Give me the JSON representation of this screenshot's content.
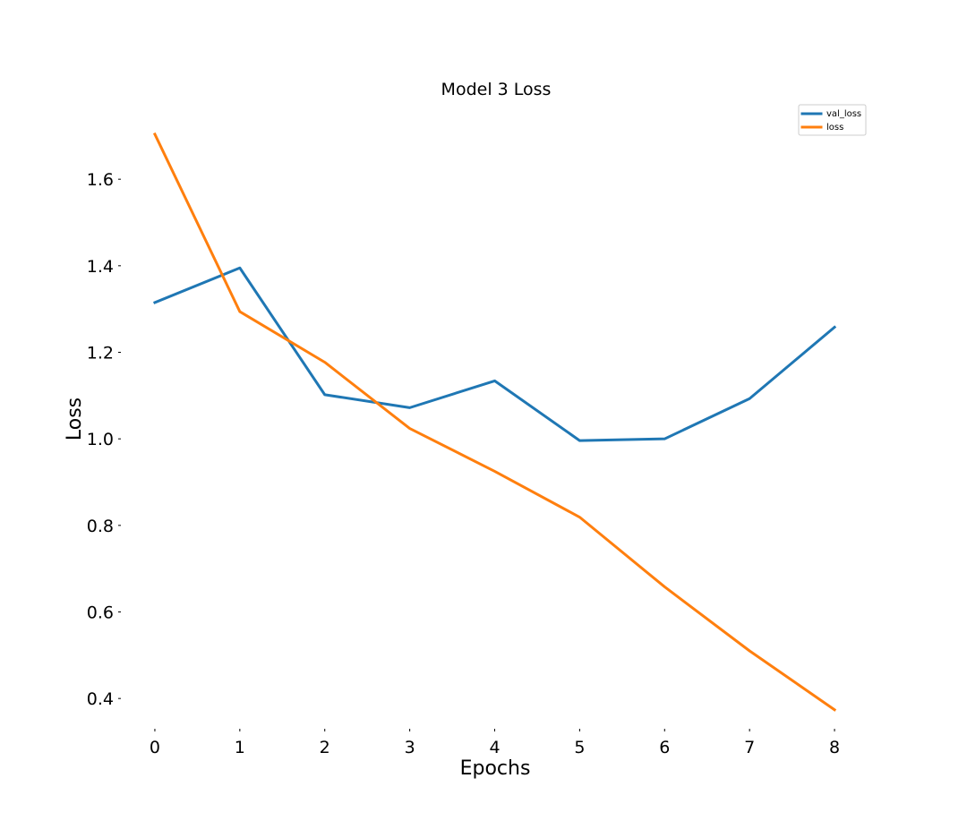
{
  "chart_data": {
    "type": "line",
    "title": "Model 3 Loss",
    "xlabel": "Epochs",
    "ylabel": "Loss",
    "x": [
      0,
      1,
      2,
      3,
      4,
      5,
      6,
      7,
      8
    ],
    "xticks": [
      "0",
      "1",
      "2",
      "3",
      "4",
      "5",
      "6",
      "7",
      "8"
    ],
    "yticks": [
      "0.4",
      "0.6",
      "0.8",
      "1.0",
      "1.2",
      "1.4",
      "1.6"
    ],
    "xlim": [
      -0.4,
      8.4
    ],
    "ylim": [
      0.33,
      1.77
    ],
    "grid": false,
    "legend_position": "top-right",
    "series": [
      {
        "name": "val_loss",
        "color": "#1f77b4",
        "values": [
          1.315,
          1.395,
          1.102,
          1.072,
          1.134,
          0.996,
          1.0,
          1.093,
          1.258
        ]
      },
      {
        "name": "loss",
        "color": "#ff7f0e",
        "values": [
          1.704,
          1.294,
          1.177,
          1.024,
          0.925,
          0.819,
          0.658,
          0.51,
          0.374
        ]
      }
    ]
  }
}
